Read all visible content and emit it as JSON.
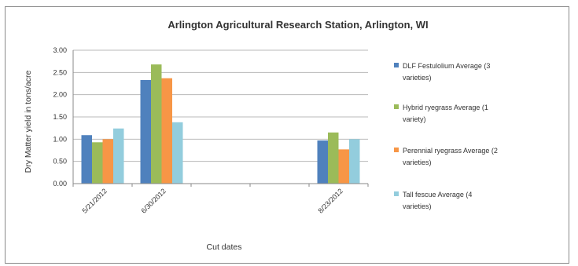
{
  "chart_data": {
    "type": "bar",
    "title": "Arlington Agricultural Research Station, Arlington, WI",
    "xlabel": "Cut dates",
    "ylabel": "Dry Matter yield in tons/acre",
    "ylim": [
      0,
      3.0
    ],
    "yticks": [
      "0.00",
      "0.50",
      "1.00",
      "1.50",
      "2.00",
      "2.50",
      "3.00"
    ],
    "categories": [
      "5/21/2012",
      "6/30/2012",
      "",
      "",
      "8/23/2012"
    ],
    "grid": true,
    "legend_position": "right",
    "series": [
      {
        "name": "DLF Festulolium Average (3 varieties)",
        "color": "#4f81bd",
        "values": [
          1.09,
          2.33,
          null,
          null,
          0.97
        ]
      },
      {
        "name": "Hybrid ryegrass Average (1 variety)",
        "color": "#9bbb59",
        "values": [
          0.93,
          2.68,
          null,
          null,
          1.15
        ]
      },
      {
        "name": "Perennial ryegrass Average (2 varieties)",
        "color": "#f79646",
        "values": [
          1.0,
          2.37,
          null,
          null,
          0.77
        ]
      },
      {
        "name": "Tall fescue Average (4 varieties)",
        "color": "#93cddd",
        "values": [
          1.24,
          1.38,
          null,
          null,
          1.0
        ]
      }
    ]
  }
}
